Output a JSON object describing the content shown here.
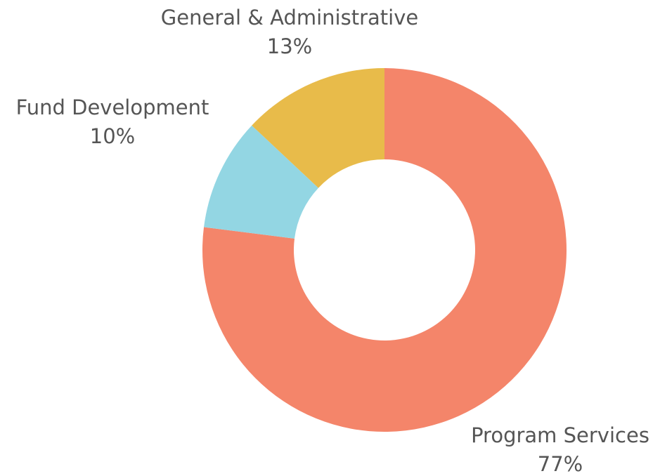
{
  "chart_data": {
    "type": "donut",
    "categories": [
      "Program Services",
      "Fund Development",
      "General & Administrative"
    ],
    "values": [
      77,
      10,
      13
    ],
    "value_labels": [
      "77%",
      "10%",
      "13%"
    ],
    "colors": [
      "#f4856a",
      "#93d6e3",
      "#e8bb4a"
    ]
  }
}
